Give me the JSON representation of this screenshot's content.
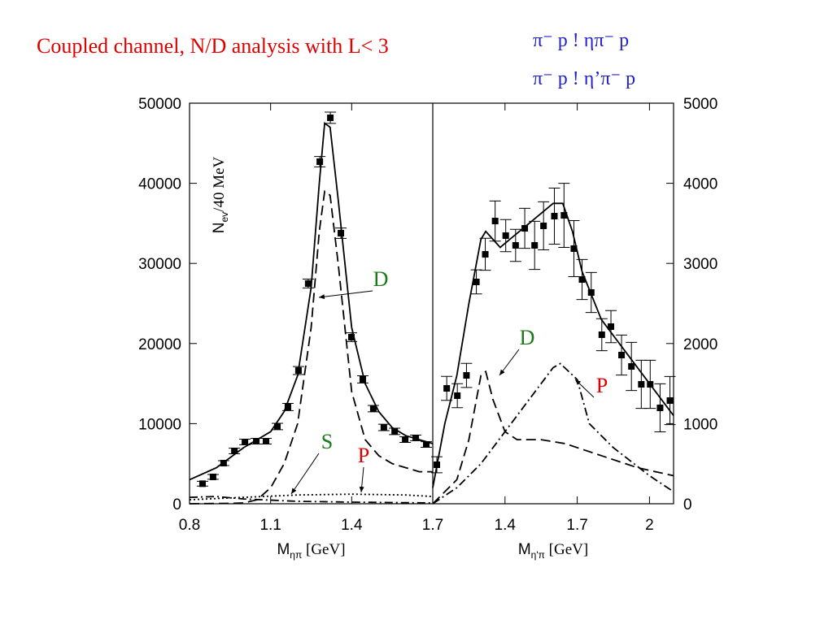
{
  "title": "Coupled channel, N/D analysis with L< 3",
  "reactions": [
    "π⁻ p ! ηπ⁻ p",
    "π⁻ p ! η’π⁻ p"
  ],
  "chart_data": [
    {
      "type": "scatter",
      "y_label": {
        "main": "N",
        "sub": "ev",
        "rest": "/40 MeV"
      },
      "x_label": {
        "main": "M",
        "sub": "ηπ",
        "rest": " [GeV]"
      },
      "xlim": [
        0.8,
        1.7
      ],
      "xticks": [
        0.8,
        1.1,
        1.4,
        1.7
      ],
      "ylim": [
        0,
        50000
      ],
      "yticks": [
        0,
        10000,
        20000,
        30000,
        40000,
        50000
      ],
      "points": {
        "x": [
          0.848,
          0.887,
          0.926,
          0.966,
          1.005,
          1.047,
          1.083,
          1.125,
          1.164,
          1.203,
          1.239,
          1.282,
          1.321,
          1.36,
          1.399,
          1.441,
          1.48,
          1.519,
          1.559,
          1.598,
          1.637,
          1.676
        ],
        "values": [
          2500,
          3350,
          5070,
          6590,
          7710,
          7810,
          7810,
          9640,
          12070,
          16630,
          27490,
          42700,
          48180,
          33770,
          20790,
          15520,
          11870,
          9530,
          9030,
          8010,
          8220,
          7400
        ],
        "errors": [
          300,
          300,
          300,
          350,
          350,
          350,
          350,
          400,
          450,
          500,
          550,
          650,
          700,
          650,
          550,
          450,
          400,
          400,
          400,
          350,
          350,
          350
        ]
      },
      "series": [
        {
          "color": "#000000",
          "dash": "solid",
          "x": [
            0.8,
            0.9,
            1.0,
            1.05,
            1.1,
            1.15,
            1.2,
            1.25,
            1.28,
            1.3,
            1.32,
            1.35,
            1.4,
            1.45,
            1.5,
            1.55,
            1.6,
            1.65,
            1.7
          ],
          "values": [
            3000,
            4500,
            7000,
            8000,
            9000,
            11500,
            16000,
            27000,
            40000,
            47500,
            47000,
            38000,
            22000,
            15000,
            11500,
            9500,
            8500,
            8000,
            7500
          ]
        },
        {
          "name": "D",
          "color": "#000000",
          "label_color": "#1a7a1a",
          "dash": "dashed",
          "x": [
            0.8,
            0.95,
            1.0,
            1.05,
            1.1,
            1.15,
            1.2,
            1.25,
            1.28,
            1.3,
            1.32,
            1.35,
            1.4,
            1.45,
            1.5,
            1.55,
            1.6,
            1.65,
            1.7
          ],
          "values": [
            0,
            50,
            100,
            500,
            2000,
            5000,
            10000,
            22000,
            34000,
            39000,
            38500,
            30000,
            14000,
            8000,
            6000,
            5000,
            4500,
            4000,
            4000
          ]
        },
        {
          "name": "S",
          "color": "#000000",
          "label_color": "#1a7a1a",
          "dash": "dotted",
          "x": [
            0.8,
            1.0,
            1.2,
            1.4,
            1.6,
            1.7
          ],
          "values": [
            500,
            800,
            1100,
            1200,
            1100,
            900
          ]
        },
        {
          "name": "P",
          "color": "#000000",
          "label_color": "#dd0000",
          "dash": "dashdot",
          "x": [
            0.8,
            0.9,
            1.0,
            1.2,
            1.4,
            1.7
          ],
          "values": [
            800,
            900,
            600,
            300,
            200,
            100
          ]
        }
      ]
    },
    {
      "type": "scatter",
      "x_label": {
        "main": "M",
        "sub": "η'π",
        "rest": " [GeV]"
      },
      "xlim": [
        1.1,
        2.1
      ],
      "xticks": [
        1.4,
        1.7,
        2
      ],
      "ylim": [
        0,
        5000
      ],
      "yticks": [
        0,
        1000,
        2000,
        3000,
        4000,
        5000
      ],
      "points": {
        "x": [
          1.117,
          1.158,
          1.202,
          1.24,
          1.281,
          1.318,
          1.359,
          1.403,
          1.444,
          1.482,
          1.523,
          1.56,
          1.605,
          1.645,
          1.686,
          1.72,
          1.758,
          1.802,
          1.84,
          1.884,
          1.925,
          1.966,
          2.003,
          2.044,
          2.085
        ],
        "values": [
          487,
          1440,
          1349,
          1602,
          2769,
          3114,
          3529,
          3347,
          3225,
          3438,
          3225,
          3469,
          3590,
          3600,
          3185,
          2799,
          2637,
          2110,
          2211,
          1856,
          1714,
          1491,
          1491,
          1197,
          1288
        ],
        "errors": [
          100,
          150,
          150,
          150,
          150,
          200,
          250,
          200,
          200,
          250,
          300,
          300,
          350,
          400,
          350,
          250,
          250,
          200,
          200,
          250,
          300,
          300,
          300,
          300,
          300
        ]
      },
      "series": [
        {
          "color": "#000000",
          "dash": "solid",
          "x": [
            1.1,
            1.15,
            1.2,
            1.25,
            1.3,
            1.32,
            1.35,
            1.38,
            1.42,
            1.5,
            1.6,
            1.64,
            1.68,
            1.72,
            1.8,
            1.9,
            2.0,
            2.1
          ],
          "values": [
            200,
            1000,
            1600,
            2500,
            3300,
            3400,
            3300,
            3200,
            3300,
            3500,
            3750,
            3750,
            3400,
            2900,
            2300,
            1900,
            1500,
            1100
          ]
        },
        {
          "name": "D",
          "color": "#000000",
          "label_color": "#1a7a1a",
          "dash": "dashed",
          "x": [
            1.1,
            1.2,
            1.25,
            1.3,
            1.32,
            1.35,
            1.4,
            1.45,
            1.55,
            1.65,
            1.8,
            1.95,
            2.1
          ],
          "values": [
            0,
            300,
            800,
            1600,
            1650,
            1300,
            900,
            800,
            800,
            750,
            600,
            450,
            350
          ]
        },
        {
          "name": "P",
          "color": "#000000",
          "label_color": "#dd0000",
          "dash": "dashdot",
          "x": [
            1.1,
            1.2,
            1.3,
            1.4,
            1.5,
            1.6,
            1.63,
            1.7,
            1.75,
            1.85,
            2.0,
            2.1
          ],
          "values": [
            0,
            200,
            500,
            900,
            1300,
            1700,
            1750,
            1550,
            1000,
            700,
            350,
            150
          ]
        }
      ]
    }
  ]
}
